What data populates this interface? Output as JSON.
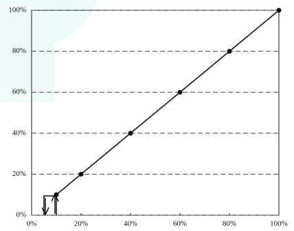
{
  "chart_data": {
    "type": "line",
    "series": [
      {
        "color": "#111111",
        "x": [
          10,
          20,
          40,
          60,
          80,
          100
        ],
        "values": [
          10,
          20,
          40,
          60,
          80,
          100
        ]
      }
    ],
    "xlim": [
      0,
      100
    ],
    "ylim": [
      0,
      100
    ],
    "xticks": [
      {
        "value": 0,
        "label": "0%"
      },
      {
        "value": 20,
        "label": "20%"
      },
      {
        "value": 40,
        "label": "40%"
      },
      {
        "value": 60,
        "label": "60%"
      },
      {
        "value": 80,
        "label": "80%"
      },
      {
        "value": 100,
        "label": "100%"
      }
    ],
    "yticks": [
      {
        "value": 0,
        "label": "0%"
      },
      {
        "value": 20,
        "label": "20%"
      },
      {
        "value": 40,
        "label": "40%"
      },
      {
        "value": 60,
        "label": "60%"
      },
      {
        "value": 80,
        "label": "80%"
      },
      {
        "value": 100,
        "label": "100%"
      }
    ],
    "grid": true
  }
}
